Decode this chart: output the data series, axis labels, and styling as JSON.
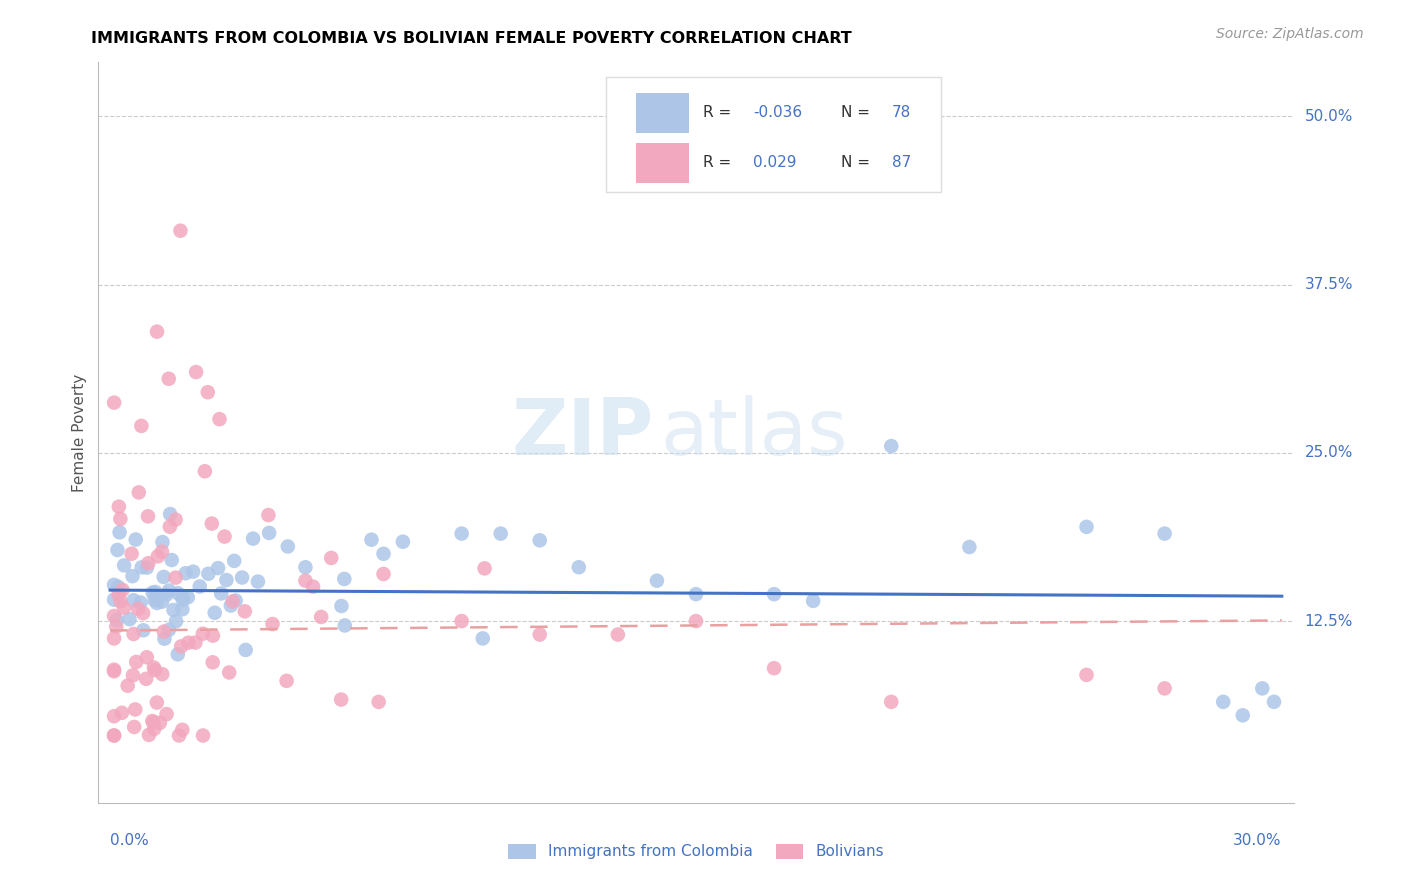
{
  "title": "IMMIGRANTS FROM COLOMBIA VS BOLIVIAN FEMALE POVERTY CORRELATION CHART",
  "source": "Source: ZipAtlas.com",
  "ylabel": "Female Poverty",
  "color_blue": "#adc6e8",
  "color_pink": "#f2a8be",
  "color_blue_line": "#4472C4",
  "color_pink_line": "#e8a0a0",
  "color_axis_label": "#4472C4",
  "color_grid": "#cccccc",
  "ytick_values": [
    0.125,
    0.25,
    0.375,
    0.5
  ],
  "ytick_labels": [
    "12.5%",
    "25.0%",
    "37.5%",
    "50.0%"
  ],
  "xlim": [
    0.0,
    0.3
  ],
  "ylim": [
    0.0,
    0.54
  ],
  "col_line_intercept": 0.148,
  "col_line_slope": -0.015,
  "bol_line_intercept": 0.118,
  "bol_line_slope": 0.025,
  "watermark_zip_color": "#c8ddef",
  "watermark_atlas_color": "#c8ddef"
}
